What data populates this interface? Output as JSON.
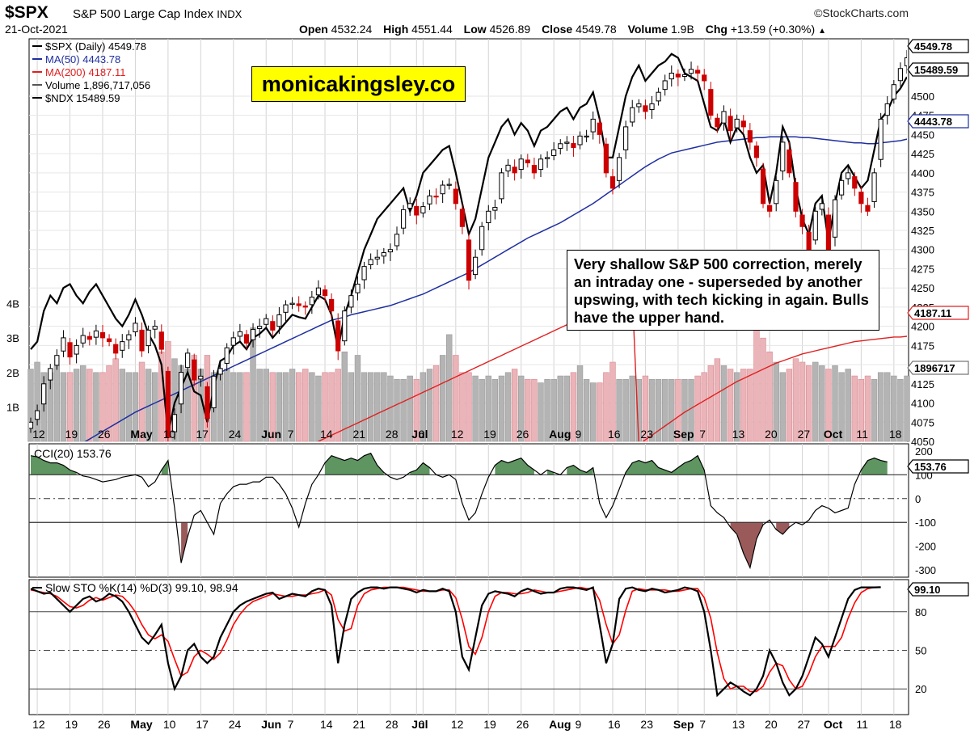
{
  "header": {
    "symbol": "$SPX",
    "name": "S&P 500 Large Cap Index",
    "exchange": "INDX",
    "date": "21-Oct-2021",
    "brand": "©StockCharts.com",
    "open_label": "Open",
    "open": "4532.24",
    "high_label": "High",
    "high": "4551.44",
    "low_label": "Low",
    "low": "4526.89",
    "close_label": "Close",
    "close": "4549.78",
    "volume_label": "Volume",
    "volume": "1.9B",
    "chg_label": "Chg",
    "chg": "+13.59 (+0.30%)"
  },
  "watermark": "monicakingsley.co",
  "annotation": "Very shallow S&P 500 correction, merely an intraday one - superseded by another upswing, with tech kicking in again. Bulls have the upper hand.",
  "colors": {
    "up": "#000000",
    "down": "#cc0000",
    "ma50": "#1f2fa0",
    "ma200": "#e02020",
    "ndx": "#000000",
    "vol_up": "#b4b4b4",
    "vol_down": "#eab4b8",
    "cci_fill_pos": "#5e9560",
    "cci_fill_neg": "#9b5a5a",
    "sto_d": "#ff0000",
    "watermark_bg": "#ffff00"
  },
  "chart_data": [
    {
      "type": "candlestick",
      "legend": [
        "$SPX (Daily) 4549.78",
        "MA(50) 4443.78",
        "MA(200) 4187.11",
        "Volume 1,896,717,056",
        "$NDX 15489.59"
      ],
      "ylim": [
        4050,
        4560
      ],
      "yticks": [
        4050,
        4075,
        4100,
        4125,
        4150,
        4175,
        4200,
        4225,
        4250,
        4275,
        4300,
        4325,
        4350,
        4375,
        4400,
        4425,
        4450,
        4475,
        4500
      ],
      "right_labels": {
        "last": "4549.78",
        "ndx": "15489.59",
        "ma50": "4443.78",
        "ma200": "4187.11",
        "volume": "1896717"
      },
      "volume_ticks": [
        "4B",
        "3B",
        "2B",
        "1B"
      ],
      "x_labels": [
        "12",
        "19",
        "26",
        "May",
        "10",
        "17",
        "24",
        "Jun",
        "7",
        "14",
        "21",
        "28",
        "Jul",
        "6",
        "12",
        "19",
        "26",
        "Aug",
        "9",
        "16",
        "23",
        "Sep",
        "7",
        "13",
        "20",
        "27",
        "Oct",
        "11",
        "18"
      ],
      "x_label_index": [
        1,
        6,
        11,
        16,
        21,
        26,
        31,
        36,
        40,
        45,
        50,
        55,
        59,
        60,
        65,
        70,
        75,
        80,
        84,
        89,
        94,
        99,
        103,
        108,
        113,
        118,
        122,
        127,
        132
      ],
      "close": [
        4075,
        4090,
        4125,
        4145,
        4162,
        4185,
        4160,
        4175,
        4188,
        4183,
        4194,
        4185,
        4180,
        4165,
        4180,
        4189,
        4204,
        4168,
        4195,
        4200,
        4170,
        4055,
        4085,
        4140,
        4165,
        4130,
        4135,
        4080,
        4135,
        4145,
        4172,
        4185,
        4193,
        4178,
        4196,
        4200,
        4210,
        4195,
        4215,
        4228,
        4230,
        4227,
        4225,
        4238,
        4250,
        4240,
        4220,
        4168,
        4220,
        4240,
        4255,
        4278,
        4287,
        4290,
        4296,
        4300,
        4320,
        4352,
        4360,
        4345,
        4356,
        4370,
        4369,
        4384,
        4385,
        4360,
        4330,
        4260,
        4290,
        4330,
        4350,
        4355,
        4400,
        4410,
        4400,
        4418,
        4413,
        4400,
        4418,
        4420,
        4430,
        4438,
        4440,
        4433,
        4448,
        4448,
        4470,
        4450,
        4400,
        4380,
        4420,
        4460,
        4485,
        4490,
        4480,
        4490,
        4505,
        4520,
        4530,
        4525,
        4528,
        4535,
        4530,
        4520,
        4475,
        4460,
        4480,
        4455,
        4470,
        4460,
        4440,
        4420,
        4360,
        4350,
        4390,
        4440,
        4400,
        4350,
        4330,
        4300,
        4350,
        4360,
        4300,
        4365,
        4390,
        4400,
        4380,
        4360,
        4350,
        4400,
        4470,
        4490,
        4515,
        4536,
        4550
      ],
      "ma50": [
        4000,
        4006,
        4012,
        4018,
        4024,
        4030,
        4036,
        4042,
        4048,
        4053,
        4058,
        4063,
        4068,
        4073,
        4078,
        4083,
        4088,
        4092,
        4096,
        4100,
        4104,
        4108,
        4112,
        4116,
        4120,
        4124,
        4128,
        4132,
        4136,
        4140,
        4144,
        4148,
        4152,
        4156,
        4160,
        4164,
        4168,
        4172,
        4176,
        4180,
        4184,
        4188,
        4192,
        4196,
        4200,
        4204,
        4208,
        4210,
        4212,
        4215,
        4217,
        4219,
        4221,
        4223,
        4225,
        4227,
        4230,
        4233,
        4236,
        4239,
        4242,
        4246,
        4250,
        4254,
        4258,
        4262,
        4266,
        4270,
        4275,
        4280,
        4285,
        4290,
        4295,
        4300,
        4305,
        4310,
        4315,
        4319,
        4323,
        4327,
        4331,
        4335,
        4340,
        4345,
        4350,
        4355,
        4360,
        4366,
        4372,
        4378,
        4384,
        4390,
        4396,
        4402,
        4408,
        4413,
        4418,
        4422,
        4426,
        4428,
        4430,
        4432,
        4434,
        4436,
        4438,
        4440,
        4441,
        4442,
        4443,
        4444,
        4445,
        4446,
        4446,
        4447,
        4447,
        4447,
        4447,
        4447,
        4446,
        4446,
        4445,
        4444,
        4443,
        4442,
        4441,
        4440,
        4439,
        4439,
        4438,
        4438,
        4439,
        4440,
        4441,
        4442,
        4444
      ],
      "ma200": [
        3700,
        3708,
        3716,
        3724,
        3732,
        3740,
        3748,
        3756,
        3764,
        3772,
        3780,
        3788,
        3796,
        3804,
        3812,
        3820,
        3828,
        3836,
        3844,
        3852,
        3860,
        3868,
        3876,
        3884,
        3892,
        3900,
        3908,
        3916,
        3924,
        3932,
        3940,
        3948,
        3956,
        3964,
        3972,
        3980,
        3988,
        3996,
        4004,
        4012,
        4020,
        4028,
        4036,
        4044,
        4050,
        4054,
        4058,
        4062,
        4066,
        4070,
        4074,
        4078,
        4082,
        4086,
        4090,
        4094,
        4098,
        4102,
        4106,
        4110,
        4114,
        4118,
        4122,
        4126,
        4130,
        4134,
        4138,
        4142,
        4146,
        4150,
        4154,
        4158,
        4162,
        4166,
        4170,
        4174,
        4178,
        4182,
        4186,
        4190,
        4194,
        4198,
        4202,
        4206,
        4210,
        4214,
        4218,
        4222,
        4226,
        4230,
        4234,
        4238,
        4242,
        4046,
        4052,
        4058,
        4064,
        4070,
        4076,
        4082,
        4088,
        4093,
        4098,
        4103,
        4108,
        4113,
        4118,
        4123,
        4128,
        4132,
        4136,
        4140,
        4144,
        4148,
        4152,
        4155,
        4158,
        4161,
        4164,
        4166,
        4168,
        4170,
        4172,
        4174,
        4176,
        4178,
        4180,
        4181,
        4182,
        4183,
        4184,
        4185,
        4186,
        4186,
        4187
      ],
      "ndx_scaled": [
        4170,
        4180,
        4220,
        4240,
        4230,
        4250,
        4255,
        4240,
        4230,
        4245,
        4255,
        4240,
        4225,
        4210,
        4200,
        4215,
        4235,
        4215,
        4190,
        4175,
        4150,
        4060,
        4100,
        4120,
        4140,
        4115,
        4110,
        4075,
        4120,
        4155,
        4160,
        4175,
        4180,
        4170,
        4185,
        4190,
        4198,
        4185,
        4195,
        4205,
        4215,
        4212,
        4210,
        4225,
        4240,
        4235,
        4215,
        4170,
        4215,
        4240,
        4270,
        4300,
        4320,
        4340,
        4350,
        4360,
        4370,
        4380,
        4350,
        4370,
        4400,
        4410,
        4420,
        4430,
        4435,
        4400,
        4360,
        4320,
        4340,
        4380,
        4420,
        4440,
        4460,
        4470,
        4450,
        4465,
        4455,
        4435,
        4455,
        4460,
        4470,
        4480,
        4485,
        4470,
        4485,
        4490,
        4505,
        4470,
        4420,
        4420,
        4460,
        4500,
        4525,
        4540,
        4520,
        4530,
        4540,
        4545,
        4555,
        4550,
        4530,
        4525,
        4520,
        4490,
        4460,
        4455,
        4470,
        4440,
        4460,
        4450,
        4420,
        4400,
        4410,
        4360,
        4400,
        4460,
        4440,
        4380,
        4340,
        4320,
        4360,
        4370,
        4310,
        4360,
        4400,
        4410,
        4395,
        4380,
        4390,
        4430,
        4470,
        4480,
        4500,
        4510,
        4525
      ],
      "volume_billion": [
        2.1,
        2.3,
        2.0,
        2.0,
        2.2,
        2.0,
        2.0,
        2.1,
        2.2,
        2.1,
        2.0,
        2.0,
        2.2,
        2.4,
        2.1,
        2.0,
        2.0,
        2.3,
        2.1,
        2.0,
        2.6,
        2.9,
        2.4,
        2.2,
        2.1,
        2.5,
        2.1,
        2.5,
        2.0,
        2.0,
        2.1,
        2.0,
        2.0,
        2.0,
        3.3,
        2.1,
        2.1,
        2.0,
        2.0,
        2.0,
        2.1,
        2.0,
        2.1,
        2.0,
        1.9,
        2.0,
        2.0,
        2.1,
        2.6,
        2.0,
        2.5,
        2.0,
        2.0,
        2.0,
        2.0,
        1.9,
        1.8,
        1.8,
        1.9,
        1.8,
        2.0,
        2.1,
        2.2,
        2.5,
        3.1,
        2.5,
        2.0,
        2.0,
        1.9,
        1.8,
        1.9,
        1.8,
        1.9,
        2.0,
        2.1,
        1.9,
        1.8,
        1.8,
        1.7,
        1.8,
        1.8,
        1.9,
        1.9,
        2.0,
        2.2,
        1.8,
        1.7,
        1.7,
        2.0,
        2.3,
        1.8,
        1.8,
        1.9,
        1.8,
        1.9,
        1.8,
        1.8,
        1.8,
        1.8,
        1.8,
        1.8,
        1.8,
        1.9,
        2.0,
        2.2,
        2.4,
        2.2,
        2.1,
        2.0,
        2.1,
        2.1,
        3.9,
        3.0,
        2.6,
        2.3,
        2.0,
        2.1,
        2.4,
        2.3,
        2.2,
        2.3,
        2.2,
        2.1,
        2.2,
        2.0,
        2.1,
        1.9,
        1.8,
        1.9,
        1.8,
        2.0,
        2.0,
        1.9,
        1.8,
        1.9
      ]
    },
    {
      "type": "line",
      "legend": "CCI(20) 153.76",
      "ylim": [
        -330,
        230
      ],
      "yticks": [
        200,
        100,
        0,
        -100,
        -200,
        -300
      ],
      "last": "153.76",
      "values": [
        180,
        175,
        160,
        150,
        150,
        140,
        120,
        110,
        95,
        90,
        80,
        70,
        75,
        80,
        90,
        95,
        100,
        90,
        50,
        70,
        120,
        160,
        -40,
        -270,
        -160,
        -70,
        -50,
        -100,
        -150,
        -20,
        20,
        50,
        60,
        60,
        70,
        70,
        90,
        90,
        60,
        20,
        -40,
        -120,
        -20,
        60,
        100,
        150,
        180,
        170,
        160,
        170,
        160,
        180,
        190,
        140,
        110,
        90,
        80,
        90,
        110,
        120,
        150,
        130,
        100,
        90,
        100,
        80,
        -20,
        -90,
        -60,
        20,
        90,
        140,
        160,
        150,
        160,
        170,
        140,
        120,
        100,
        120,
        110,
        100,
        130,
        140,
        120,
        110,
        130,
        -20,
        -80,
        -30,
        40,
        110,
        150,
        160,
        150,
        160,
        130,
        120,
        110,
        130,
        150,
        160,
        180,
        120,
        -30,
        -60,
        -80,
        -120,
        -150,
        -230,
        -290,
        -170,
        -110,
        -90,
        -130,
        -150,
        -120,
        -100,
        -110,
        -90,
        -50,
        -30,
        -40,
        -60,
        -50,
        -40,
        60,
        120,
        160,
        170,
        160,
        153.76
      ]
    },
    {
      "type": "line",
      "legend": "Slow STO %K(14) %D(3) 99.10, 98.94",
      "ylim": [
        0,
        100
      ],
      "hlines": [
        80,
        50,
        20
      ],
      "ytick_labels": [
        "80",
        "50",
        "20"
      ],
      "last": "99.10",
      "k": [
        98,
        96,
        94,
        95,
        90,
        85,
        80,
        85,
        90,
        92,
        88,
        90,
        94,
        92,
        88,
        80,
        70,
        60,
        55,
        62,
        70,
        40,
        20,
        30,
        50,
        55,
        45,
        40,
        45,
        60,
        70,
        80,
        85,
        88,
        90,
        92,
        94,
        95,
        90,
        92,
        94,
        93,
        92,
        96,
        98,
        97,
        85,
        40,
        70,
        90,
        95,
        98,
        99,
        99,
        98,
        99,
        99,
        98,
        97,
        95,
        97,
        96,
        96,
        98,
        96,
        80,
        45,
        35,
        60,
        85,
        94,
        96,
        95,
        94,
        92,
        96,
        98,
        96,
        94,
        95,
        95,
        98,
        99,
        99,
        98,
        97,
        99,
        70,
        40,
        55,
        90,
        98,
        99,
        97,
        96,
        98,
        97,
        95,
        96,
        97,
        99,
        98,
        96,
        80,
        50,
        15,
        20,
        25,
        22,
        18,
        15,
        20,
        30,
        50,
        40,
        25,
        15,
        20,
        30,
        45,
        60,
        55,
        45,
        60,
        75,
        90,
        97,
        99,
        99,
        99,
        99.1
      ],
      "d": [
        97,
        96,
        95,
        94,
        92,
        88,
        84,
        83,
        85,
        89,
        91,
        89,
        91,
        93,
        92,
        87,
        80,
        70,
        62,
        59,
        62,
        57,
        43,
        30,
        33,
        45,
        50,
        47,
        43,
        48,
        58,
        70,
        78,
        84,
        88,
        90,
        92,
        94,
        93,
        92,
        92,
        93,
        93,
        94,
        95,
        97,
        93,
        74,
        65,
        67,
        85,
        94,
        97,
        98,
        99,
        99,
        99,
        99,
        98,
        97,
        96,
        96,
        96,
        97,
        97,
        91,
        74,
        53,
        47,
        60,
        80,
        92,
        95,
        95,
        94,
        94,
        95,
        97,
        96,
        95,
        95,
        96,
        97,
        98,
        99,
        98,
        98,
        89,
        70,
        55,
        62,
        81,
        96,
        98,
        97,
        97,
        97,
        97,
        96,
        96,
        97,
        98,
        98,
        91,
        75,
        48,
        28,
        20,
        22,
        22,
        18,
        18,
        22,
        33,
        40,
        38,
        27,
        20,
        22,
        32,
        45,
        53,
        53,
        53,
        60,
        75,
        87,
        95,
        98,
        99,
        98.94
      ]
    }
  ]
}
